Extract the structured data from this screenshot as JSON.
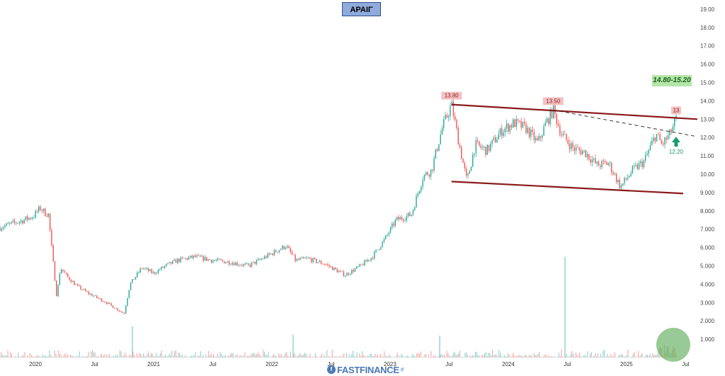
{
  "ticker": "ΑΡΑΙΓ",
  "target_label": "14.80-15.20",
  "logo": {
    "main": "FASTFINANCE",
    "suffix": "gr"
  },
  "chart_data": {
    "type": "candlestick",
    "ylim": [
      0,
      19.5
    ],
    "y_ticks": [
      "1.000",
      "2.000",
      "3.000",
      "4.000",
      "5.000",
      "6.000",
      "7.000",
      "8.000",
      "9.000",
      "10.00",
      "11.00",
      "12.00",
      "13.00",
      "14.00",
      "15.00",
      "16.00",
      "17.00",
      "18.00",
      "19.00"
    ],
    "x_ticks": [
      "2020",
      "Jul",
      "2021",
      "Jul",
      "2022",
      "Jul",
      "2023",
      "Jul",
      "2024",
      "Jul",
      "2025",
      "Jul"
    ],
    "x_tick_times": [
      2020.0,
      2020.5,
      2021.0,
      2021.5,
      2022.0,
      2022.5,
      2023.0,
      2023.5,
      2024.0,
      2024.5,
      2025.0,
      2025.5
    ],
    "xlim": [
      2019.7,
      2025.6
    ],
    "price_path": [
      [
        2019.7,
        7.1
      ],
      [
        2019.8,
        7.3
      ],
      [
        2019.9,
        7.5
      ],
      [
        2019.98,
        7.7
      ],
      [
        2020.04,
        8.15
      ],
      [
        2020.08,
        7.9
      ],
      [
        2020.11,
        7.8
      ],
      [
        2020.14,
        5.8
      ],
      [
        2020.18,
        3.3
      ],
      [
        2020.21,
        4.9
      ],
      [
        2020.27,
        4.4
      ],
      [
        2020.35,
        3.9
      ],
      [
        2020.45,
        3.5
      ],
      [
        2020.6,
        3.0
      ],
      [
        2020.75,
        2.4
      ],
      [
        2020.8,
        4.0
      ],
      [
        2020.9,
        4.9
      ],
      [
        2021.0,
        4.6
      ],
      [
        2021.1,
        5.0
      ],
      [
        2021.2,
        5.3
      ],
      [
        2021.35,
        5.5
      ],
      [
        2021.5,
        5.3
      ],
      [
        2021.65,
        5.2
      ],
      [
        2021.8,
        5.0
      ],
      [
        2021.95,
        5.5
      ],
      [
        2022.12,
        6.1
      ],
      [
        2022.2,
        5.3
      ],
      [
        2022.3,
        5.4
      ],
      [
        2022.45,
        5.1
      ],
      [
        2022.62,
        4.5
      ],
      [
        2022.75,
        5.0
      ],
      [
        2022.85,
        5.5
      ],
      [
        2022.95,
        6.4
      ],
      [
        2023.05,
        7.5
      ],
      [
        2023.18,
        7.8
      ],
      [
        2023.28,
        9.9
      ],
      [
        2023.35,
        10.2
      ],
      [
        2023.44,
        12.5
      ],
      [
        2023.52,
        13.8
      ],
      [
        2023.58,
        11.8
      ],
      [
        2023.65,
        9.6
      ],
      [
        2023.72,
        11.6
      ],
      [
        2023.82,
        11.3
      ],
      [
        2023.95,
        12.4
      ],
      [
        2024.05,
        12.8
      ],
      [
        2024.15,
        12.5
      ],
      [
        2024.25,
        11.7
      ],
      [
        2024.32,
        12.8
      ],
      [
        2024.38,
        13.5
      ],
      [
        2024.45,
        12.2
      ],
      [
        2024.55,
        11.4
      ],
      [
        2024.65,
        11.2
      ],
      [
        2024.75,
        10.5
      ],
      [
        2024.85,
        10.6
      ],
      [
        2024.95,
        9.3
      ],
      [
        2025.05,
        10.2
      ],
      [
        2025.15,
        10.7
      ],
      [
        2025.25,
        12.2
      ],
      [
        2025.3,
        11.6
      ],
      [
        2025.37,
        12.2
      ],
      [
        2025.42,
        13.0
      ]
    ],
    "lines": [
      {
        "name": "upper",
        "style": "solid",
        "color": "#8b1a1a",
        "points": [
          [
            2023.52,
            13.8
          ],
          [
            2025.6,
            13.0
          ]
        ]
      },
      {
        "name": "lower",
        "style": "solid",
        "color": "#8b1a1a",
        "points": [
          [
            2023.52,
            9.6
          ],
          [
            2025.48,
            8.95
          ]
        ]
      },
      {
        "name": "trend",
        "style": "dashed",
        "color": "#333333",
        "points": [
          [
            2024.38,
            13.5
          ],
          [
            2025.6,
            12.05
          ]
        ]
      }
    ],
    "annotations": [
      {
        "text": "13.80",
        "t": 2023.52,
        "v": 13.8,
        "kind": "resistance"
      },
      {
        "text": "13.50",
        "t": 2024.38,
        "v": 13.5,
        "kind": "resistance"
      },
      {
        "text": "13",
        "t": 2025.42,
        "v": 13.0,
        "kind": "resistance"
      },
      {
        "text": "12.20",
        "t": 2025.42,
        "v": 12.2,
        "kind": "support"
      }
    ],
    "volume_spikes": [
      {
        "t": 2020.82,
        "v": 1.7
      },
      {
        "t": 2022.18,
        "v": 1.25
      },
      {
        "t": 2023.42,
        "v": 1.2
      },
      {
        "t": 2024.48,
        "v": 5.5
      }
    ],
    "colors": {
      "up": "#26a69a",
      "down": "#ef5350",
      "line": "#8b1a1a",
      "target_bg": "#b5e6a8",
      "highlight": "#5fae5a"
    }
  }
}
